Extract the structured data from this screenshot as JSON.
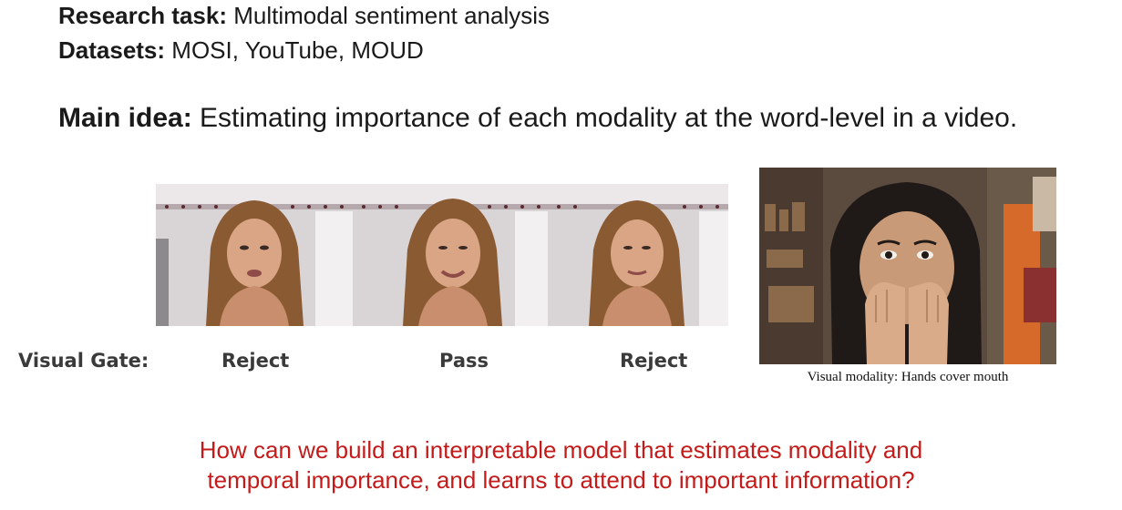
{
  "research_task": {
    "label": "Research task:",
    "text": " Multimodal sentiment analysis"
  },
  "datasets": {
    "label": "Datasets:",
    "text": " MOSI, YouTube, MOUD"
  },
  "main_idea": {
    "label": "Main idea:",
    "text": " Estimating importance of each modality at the word-level in a video."
  },
  "visual_gate": {
    "label": "Visual Gate:",
    "decisions": [
      "Reject",
      "Pass",
      "Reject"
    ]
  },
  "caption": "Visual modality: Hands cover mouth",
  "question": {
    "line1": "How can we build an interpretable model that estimates modality and",
    "line2": "temporal importance, and learns to attend to important information?"
  },
  "colors": {
    "question": "#c41a1a",
    "text": "#1a1a1a"
  }
}
